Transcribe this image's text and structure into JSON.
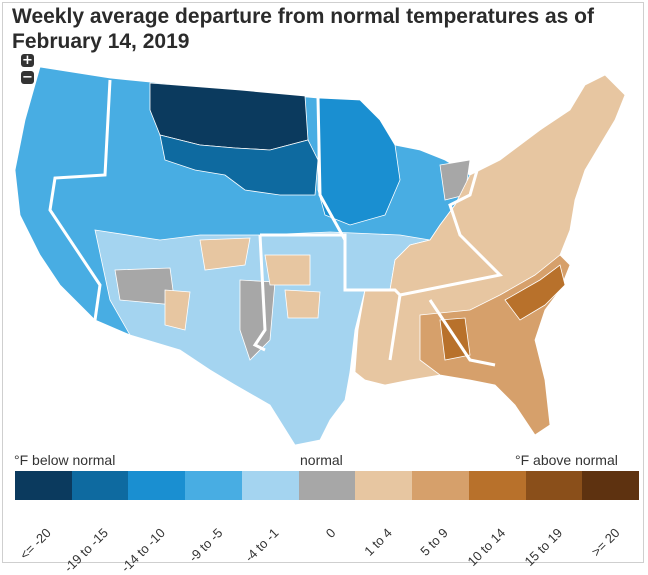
{
  "title": "Weekly average departure from normal temperatures as of February 14, 2019",
  "zoom": {
    "in_label": "+",
    "out_label": "−"
  },
  "legend": {
    "left_caption": "°F below normal",
    "center_caption": "normal",
    "right_caption": "°F above normal",
    "bins": [
      {
        "label": "<= -20",
        "color": "#0b3a5e"
      },
      {
        "label": "-19 to -15",
        "color": "#0e6aa0"
      },
      {
        "label": "-14 to -10",
        "color": "#1a8fd1"
      },
      {
        "label": "-9 to -5",
        "color": "#48ade3"
      },
      {
        "label": "-4 to -1",
        "color": "#a4d4f0"
      },
      {
        "label": "0",
        "color": "#a7a7a7"
      },
      {
        "label": "1 to 4",
        "color": "#e7c6a1"
      },
      {
        "label": "5 to 9",
        "color": "#d6a06b"
      },
      {
        "label": "10 to 14",
        "color": "#b8712b"
      },
      {
        "label": "15 to 19",
        "color": "#8a4f1a"
      },
      {
        "label": ">= 20",
        "color": "#5e3210"
      }
    ]
  }
}
